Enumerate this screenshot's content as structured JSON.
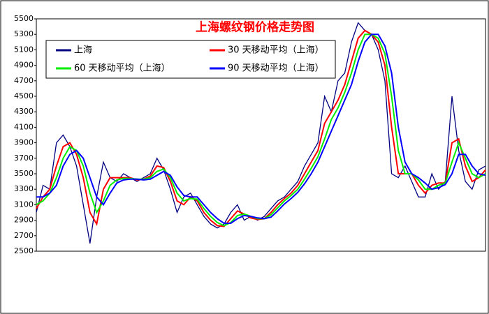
{
  "chart_data": {
    "type": "line",
    "title": "上海螺纹钢价格走势图",
    "ylim": [
      2500,
      5500
    ],
    "yticks": [
      2500,
      2700,
      2900,
      3100,
      3300,
      3500,
      3700,
      3900,
      4100,
      4300,
      4500,
      4700,
      4900,
      5100,
      5300,
      5500
    ],
    "grid": false,
    "legend": "upper left",
    "series": [
      {
        "name": "上海",
        "color": "#000080",
        "values": [
          3000,
          3350,
          3300,
          3900,
          4000,
          3850,
          3600,
          3100,
          2600,
          3200,
          3650,
          3450,
          3400,
          3500,
          3450,
          3400,
          3450,
          3500,
          3700,
          3550,
          3300,
          3000,
          3200,
          3250,
          3100,
          2950,
          2850,
          2800,
          2850,
          3000,
          3100,
          2900,
          2950,
          2900,
          2950,
          3050,
          3150,
          3200,
          3300,
          3400,
          3600,
          3750,
          3900,
          4500,
          4300,
          4700,
          4800,
          5200,
          5450,
          5350,
          5300,
          5100,
          4700,
          3500,
          3450,
          3600,
          3400,
          3200,
          3200,
          3500,
          3300,
          3400,
          4500,
          3800,
          3400,
          3300,
          3550,
          3600
        ]
      },
      {
        "name": "30 天移动平均（上海）",
        "color": "#ff0000",
        "values": [
          3050,
          3200,
          3300,
          3600,
          3850,
          3900,
          3750,
          3450,
          3000,
          2850,
          3300,
          3450,
          3450,
          3450,
          3450,
          3420,
          3430,
          3470,
          3600,
          3580,
          3400,
          3150,
          3100,
          3200,
          3150,
          3000,
          2900,
          2830,
          2820,
          2920,
          3020,
          2980,
          2930,
          2910,
          2920,
          3000,
          3100,
          3180,
          3250,
          3350,
          3500,
          3650,
          3800,
          4150,
          4300,
          4450,
          4650,
          4950,
          5250,
          5350,
          5300,
          5200,
          4900,
          4100,
          3500,
          3500,
          3500,
          3350,
          3250,
          3350,
          3380,
          3380,
          3900,
          3950,
          3600,
          3400,
          3450,
          3550
        ]
      },
      {
        "name": "60 天移动平均（上海）",
        "color": "#00ee00",
        "values": [
          3100,
          3150,
          3250,
          3450,
          3700,
          3850,
          3800,
          3600,
          3250,
          3000,
          3150,
          3350,
          3420,
          3440,
          3440,
          3430,
          3430,
          3450,
          3530,
          3560,
          3450,
          3250,
          3150,
          3180,
          3170,
          3050,
          2950,
          2870,
          2830,
          2870,
          2960,
          2980,
          2950,
          2920,
          2920,
          2970,
          3060,
          3150,
          3220,
          3300,
          3430,
          3570,
          3720,
          3950,
          4200,
          4350,
          4550,
          4800,
          5100,
          5300,
          5300,
          5250,
          5050,
          4500,
          3800,
          3500,
          3500,
          3420,
          3300,
          3300,
          3350,
          3380,
          3650,
          3900,
          3700,
          3500,
          3450,
          3500
        ]
      },
      {
        "name": "90 天移动平均（上海）",
        "color": "#0000ff",
        "values": [
          3200,
          3200,
          3250,
          3350,
          3600,
          3750,
          3800,
          3700,
          3450,
          3200,
          3100,
          3250,
          3380,
          3420,
          3430,
          3430,
          3420,
          3430,
          3480,
          3530,
          3480,
          3330,
          3220,
          3200,
          3200,
          3100,
          3000,
          2920,
          2860,
          2860,
          2920,
          2960,
          2950,
          2930,
          2920,
          2940,
          3020,
          3110,
          3180,
          3260,
          3370,
          3500,
          3650,
          3850,
          4050,
          4250,
          4450,
          4650,
          4950,
          5200,
          5300,
          5300,
          5150,
          4800,
          4100,
          3650,
          3500,
          3450,
          3380,
          3300,
          3320,
          3360,
          3500,
          3750,
          3750,
          3600,
          3500,
          3480
        ]
      }
    ]
  }
}
